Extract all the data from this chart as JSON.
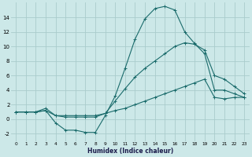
{
  "xlabel": "Humidex (Indice chaleur)",
  "background_color": "#cce8e8",
  "grid_color": "#aacccc",
  "line_color": "#1a6b6b",
  "x_values": [
    0,
    1,
    2,
    3,
    4,
    5,
    6,
    7,
    8,
    9,
    10,
    11,
    12,
    13,
    14,
    15,
    16,
    17,
    18,
    19,
    20,
    21,
    22,
    23
  ],
  "series1": [
    1.0,
    1.0,
    1.0,
    1.2,
    -0.5,
    -1.5,
    -1.5,
    -1.8,
    -1.8,
    0.5,
    3.2,
    7.0,
    11.0,
    13.8,
    15.2,
    15.5,
    15.0,
    12.0,
    10.4,
    9.0,
    4.0,
    4.0,
    3.5,
    3.0
  ],
  "series2": [
    1.0,
    1.0,
    1.0,
    1.5,
    0.5,
    0.3,
    0.3,
    0.3,
    0.3,
    0.8,
    2.5,
    4.2,
    5.8,
    7.0,
    8.0,
    9.0,
    10.0,
    10.5,
    10.3,
    9.5,
    6.0,
    5.5,
    4.5,
    3.5
  ],
  "series3": [
    1.0,
    1.0,
    1.0,
    1.2,
    0.5,
    0.5,
    0.5,
    0.5,
    0.5,
    0.8,
    1.2,
    1.5,
    2.0,
    2.5,
    3.0,
    3.5,
    4.0,
    4.5,
    5.0,
    5.5,
    3.0,
    2.8,
    3.0,
    3.0
  ],
  "ylim": [
    -3,
    16
  ],
  "xlim": [
    -0.5,
    23.5
  ],
  "yticks": [
    -2,
    0,
    2,
    4,
    6,
    8,
    10,
    12,
    14
  ],
  "xticks": [
    0,
    1,
    2,
    3,
    4,
    5,
    6,
    7,
    8,
    9,
    10,
    11,
    12,
    13,
    14,
    15,
    16,
    17,
    18,
    19,
    20,
    21,
    22,
    23
  ]
}
